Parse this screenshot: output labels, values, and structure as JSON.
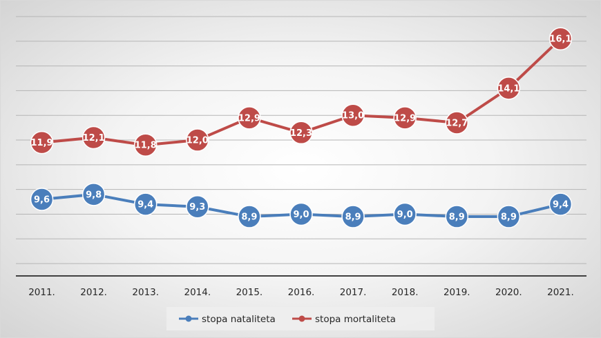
{
  "chart_data": {
    "type": "line",
    "title": "",
    "xlabel": "",
    "ylabel": "",
    "categories": [
      "2011.",
      "2012.",
      "2013.",
      "2014.",
      "2015.",
      "2016.",
      "2017.",
      "2018.",
      "2019.",
      "2020.",
      "2021."
    ],
    "series": [
      {
        "name": "stopa nataliteta",
        "color": "#4a7ebb",
        "values": [
          9.6,
          9.8,
          9.4,
          9.3,
          8.9,
          9.0,
          8.9,
          9.0,
          8.9,
          8.9,
          9.4
        ],
        "labels": [
          "9,6",
          "9,8",
          "9,4",
          "9,3",
          "8,9",
          "9,0",
          "8,9",
          "9,0",
          "8,9",
          "8,9",
          "9,4"
        ]
      },
      {
        "name": "stopa mortaliteta",
        "color": "#be4b48",
        "values": [
          11.9,
          12.1,
          11.8,
          12.0,
          12.9,
          12.3,
          13.0,
          12.9,
          12.7,
          14.1,
          16.1
        ],
        "labels": [
          "11,9",
          "12,1",
          "11,8",
          "12,0",
          "12,9",
          "12,3",
          "13,0",
          "12,9",
          "12,7",
          "14,1",
          "16,1"
        ]
      }
    ],
    "ylim": [
      6.5,
      17
    ],
    "y_gridlines": [
      7,
      8,
      9,
      10,
      11,
      12,
      13,
      14,
      15,
      16,
      17
    ],
    "grid": true,
    "y_axis_visible": false,
    "legend_position": "bottom",
    "data_labels": true
  }
}
